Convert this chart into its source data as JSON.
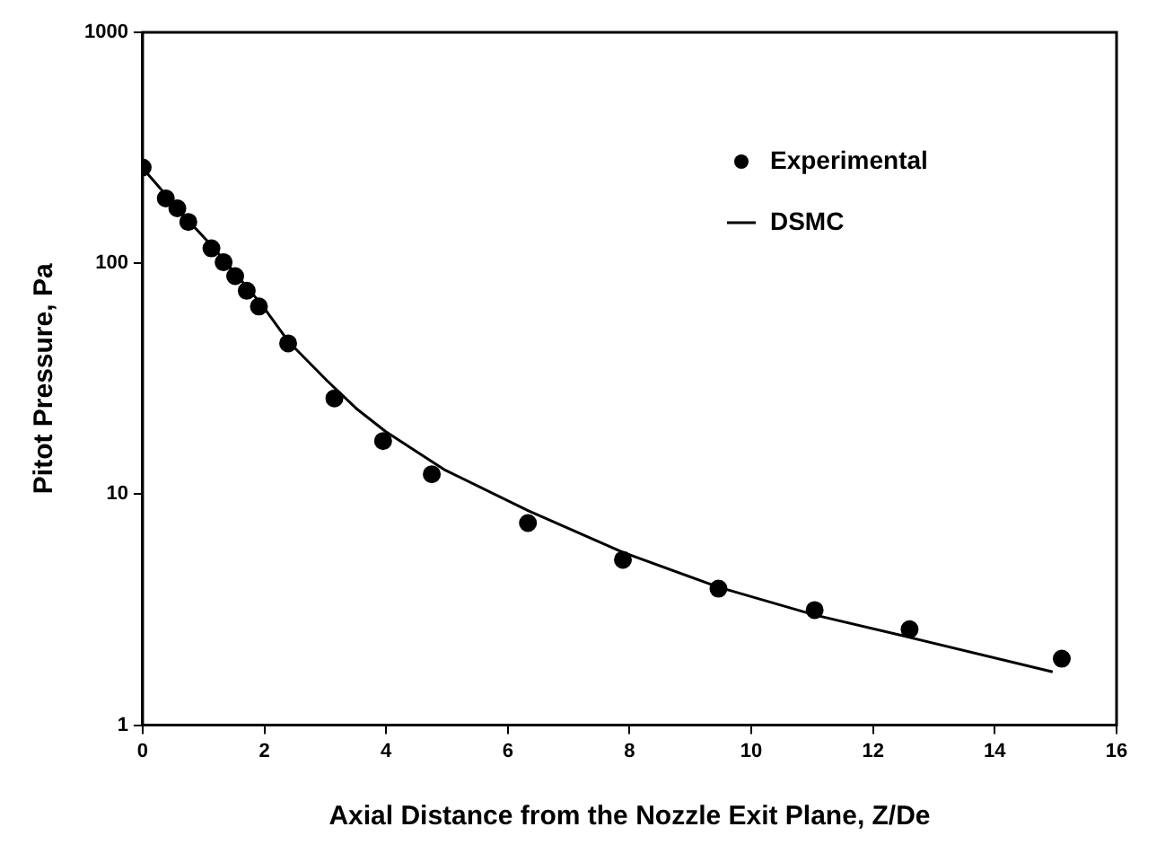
{
  "chart_data": {
    "type": "scatter",
    "xlabel": "Axial Distance from the Nozzle Exit Plane, Z/De",
    "ylabel": "Pitot Pressure, Pa",
    "log": "y",
    "xlim": [
      0,
      16
    ],
    "ylim": [
      1,
      1000
    ],
    "xticks": [
      0,
      2,
      4,
      6,
      8,
      10,
      12,
      14,
      16
    ],
    "yticks": [
      1,
      10,
      100,
      1000
    ],
    "legend": "top right",
    "series": [
      {
        "name": "Experimental",
        "marker": "circle",
        "color": "#000000",
        "x": [
          0,
          0.38,
          0.57,
          0.75,
          1.13,
          1.33,
          1.52,
          1.71,
          1.91,
          2.39,
          3.15,
          3.95,
          4.75,
          6.33,
          7.89,
          9.46,
          11.04,
          12.6,
          15.1
        ],
        "values": [
          260,
          191,
          173,
          151,
          116,
          101,
          88,
          76,
          65,
          45,
          26,
          17,
          12.2,
          7.5,
          5.2,
          3.9,
          3.15,
          2.6,
          1.94
        ]
      },
      {
        "name": "DSMC",
        "type": "line",
        "marker": "none",
        "line_style": "solid",
        "color": "#000000",
        "x": [
          0,
          0.76,
          1.15,
          1.96,
          2.39,
          3.03,
          3.51,
          3.99,
          4.95,
          6.33,
          7.89,
          9.46,
          11.04,
          12.6,
          14.95
        ],
        "values": [
          258,
          152,
          118,
          66,
          46,
          31,
          23.5,
          18.7,
          12.8,
          8.5,
          5.6,
          3.96,
          3.0,
          2.4,
          1.7
        ]
      }
    ]
  }
}
